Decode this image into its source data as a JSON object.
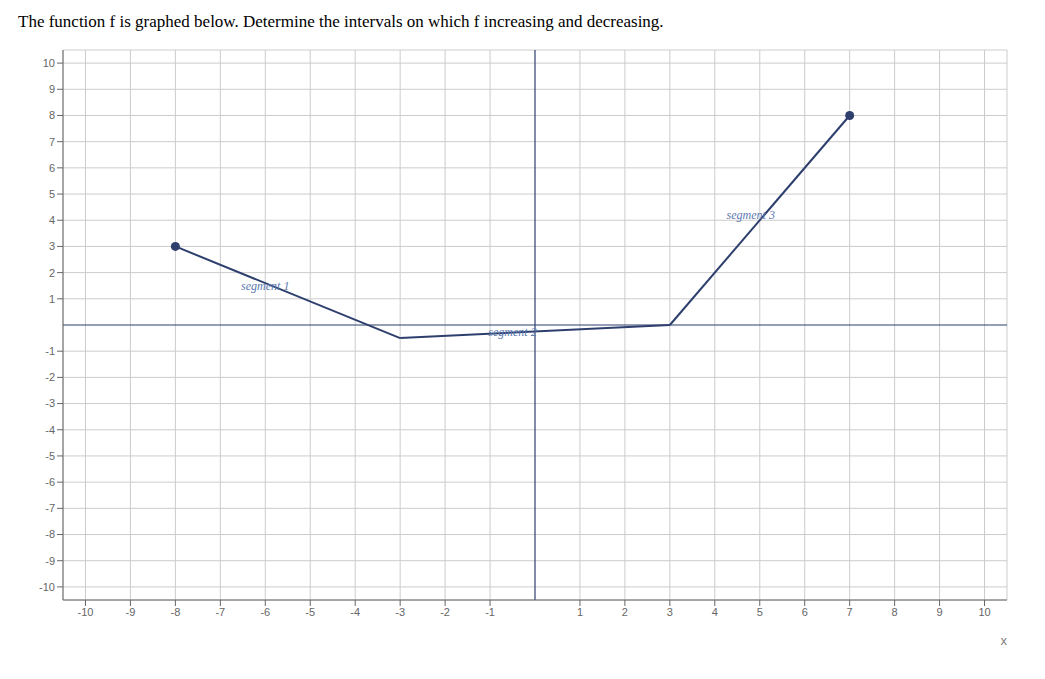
{
  "chart_data": {
    "type": "line",
    "title": "The function f is graphed below. Determine the intervals on which f increasing and decreasing.",
    "xlabel": "x",
    "series": [
      {
        "type": "line",
        "x": [
          -8,
          -3
        ],
        "values": [
          3,
          -0.5
        ],
        "color": "#2e3f6e"
      },
      {
        "type": "line",
        "x": [
          -3,
          3
        ],
        "values": [
          -0.5,
          0
        ],
        "color": "#2e3f6e"
      },
      {
        "type": "line",
        "x": [
          3,
          7
        ],
        "values": [
          0,
          8
        ],
        "color": "#2e3f6e"
      },
      {
        "type": "scatter",
        "x": [
          -8,
          7
        ],
        "values": [
          3,
          8
        ],
        "color": "#2e3f6e"
      }
    ],
    "annotations": [
      {
        "text": "segment 1",
        "x": -6.0,
        "y": 1.5,
        "color": "#5b7ab0"
      },
      {
        "text": "segment 2",
        "x": -0.5,
        "y": -0.25,
        "color": "#5b7ab0"
      },
      {
        "text": "segment 3",
        "x": 4.8,
        "y": 4.2,
        "color": "#5b7ab0"
      }
    ],
    "xlim": [
      -10.5,
      10.5
    ],
    "ylim": [
      -10.5,
      10.5
    ],
    "xticks": [
      -10,
      -9,
      -8,
      -7,
      -6,
      -5,
      -4,
      -3,
      -2,
      -1,
      1,
      2,
      3,
      4,
      5,
      6,
      7,
      8,
      9,
      10
    ],
    "yticks": [
      -10,
      -9,
      -8,
      -7,
      -6,
      -5,
      -4,
      -3,
      -2,
      -1,
      1,
      2,
      3,
      4,
      5,
      6,
      7,
      8,
      9,
      10
    ],
    "grid": true
  }
}
